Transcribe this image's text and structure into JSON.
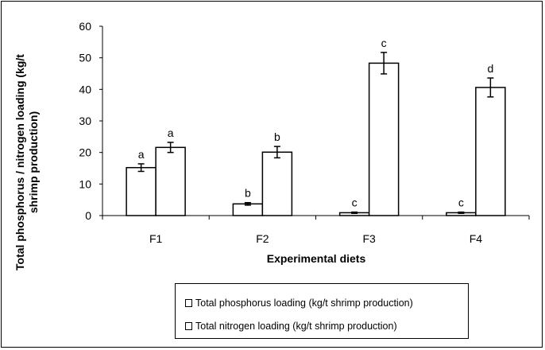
{
  "chart_data": {
    "type": "bar",
    "categories": [
      "F1",
      "F2",
      "F3",
      "F4"
    ],
    "series": [
      {
        "name": "Total phosphorus loading (kg/t shrimp production)",
        "values": [
          15.2,
          3.7,
          0.9,
          0.9
        ],
        "errors": [
          1.2,
          0.4,
          0.2,
          0.2
        ],
        "labels": [
          "a",
          "b",
          "c",
          "c"
        ]
      },
      {
        "name": "Total nitrogen loading (kg/t shrimp production)",
        "values": [
          21.6,
          20.1,
          48.3,
          40.6
        ],
        "errors": [
          1.6,
          1.8,
          3.4,
          3.0
        ],
        "labels": [
          "a",
          "b",
          "c",
          "d"
        ]
      }
    ],
    "xlabel": "Experimental diets",
    "ylabel_line1": "Total phosphorus / nitrogen loading (kg/t",
    "ylabel_line2": "shrimp production)",
    "ylim": [
      0,
      60
    ],
    "yticks": [
      0,
      10,
      20,
      30,
      40,
      50,
      60
    ],
    "grid": false,
    "legend_position": "bottom-right"
  }
}
